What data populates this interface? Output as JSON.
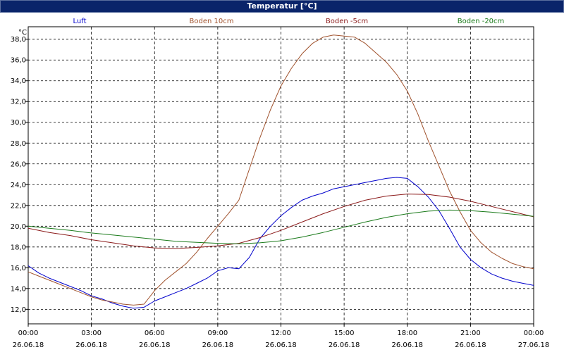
{
  "window": {
    "title": "Temperatur [°C]"
  },
  "chart_data": {
    "type": "line",
    "title": "Temperatur [°C]",
    "ylabel": "°C",
    "xlabel": "",
    "ylim": [
      10.6,
      39.2
    ],
    "xlim": [
      0,
      24
    ],
    "y_ticks": [
      12.0,
      14.0,
      16.0,
      18.0,
      20.0,
      22.0,
      24.0,
      26.0,
      28.0,
      30.0,
      32.0,
      34.0,
      36.0,
      38.0
    ],
    "x_ticks": [
      {
        "x": 0,
        "time": "00:00",
        "date": "26.06.18"
      },
      {
        "x": 3,
        "time": "03:00",
        "date": "26.06.18"
      },
      {
        "x": 6,
        "time": "06:00",
        "date": "26.06.18"
      },
      {
        "x": 9,
        "time": "09:00",
        "date": "26.06.18"
      },
      {
        "x": 12,
        "time": "12:00",
        "date": "26.06.18"
      },
      {
        "x": 15,
        "time": "15:00",
        "date": "26.06.18"
      },
      {
        "x": 18,
        "time": "18:00",
        "date": "26.06.18"
      },
      {
        "x": 21,
        "time": "21:00",
        "date": "26.06.18"
      },
      {
        "x": 24,
        "time": "00:00",
        "date": "27.06.18"
      }
    ],
    "grid": true,
    "legend_position": "top",
    "series": [
      {
        "name": "Luft",
        "color": "#0000cc",
        "x": [
          0,
          0.5,
          1,
          1.5,
          2,
          2.5,
          3,
          3.5,
          4,
          4.5,
          5,
          5.5,
          6,
          6.5,
          7,
          7.5,
          8,
          8.5,
          9,
          9.5,
          10,
          10.5,
          11,
          11.5,
          12,
          12.5,
          13,
          13.5,
          14,
          14.5,
          15,
          15.5,
          16,
          16.5,
          17,
          17.5,
          18,
          18.5,
          19,
          19.5,
          20,
          20.5,
          21,
          21.5,
          22,
          22.5,
          23,
          23.5,
          24
        ],
        "y": [
          16.2,
          15.5,
          15.0,
          14.6,
          14.2,
          13.8,
          13.3,
          13.0,
          12.6,
          12.3,
          12.1,
          12.2,
          12.8,
          13.2,
          13.6,
          14.0,
          14.5,
          15.0,
          15.7,
          16.0,
          15.9,
          17.0,
          18.8,
          20.0,
          21.0,
          21.8,
          22.5,
          22.9,
          23.2,
          23.6,
          23.8,
          24.0,
          24.2,
          24.4,
          24.6,
          24.7,
          24.6,
          23.8,
          22.8,
          21.5,
          19.8,
          18.0,
          16.8,
          16.0,
          15.4,
          15.0,
          14.7,
          14.5,
          14.3
        ]
      },
      {
        "name": "Boden 10cm",
        "color": "#a0522d",
        "x": [
          0,
          0.5,
          1,
          1.5,
          2,
          2.5,
          3,
          3.5,
          4,
          4.5,
          5,
          5.5,
          6,
          6.5,
          7,
          7.5,
          8,
          8.5,
          9,
          9.5,
          10,
          10.5,
          11,
          11.5,
          12,
          12.5,
          13,
          13.5,
          14,
          14.5,
          15,
          15.5,
          16,
          16.5,
          17,
          17.5,
          18,
          18.5,
          19,
          19.5,
          20,
          20.5,
          21,
          21.5,
          22,
          22.5,
          23,
          23.5,
          24
        ],
        "y": [
          15.6,
          15.2,
          14.8,
          14.4,
          14.0,
          13.6,
          13.2,
          12.9,
          12.7,
          12.5,
          12.4,
          12.5,
          13.8,
          14.8,
          15.6,
          16.4,
          17.5,
          18.8,
          20.0,
          21.2,
          22.5,
          25.5,
          28.5,
          31.2,
          33.5,
          35.2,
          36.6,
          37.6,
          38.2,
          38.4,
          38.3,
          38.2,
          37.6,
          36.7,
          35.8,
          34.6,
          33.0,
          30.8,
          28.2,
          25.8,
          23.4,
          21.4,
          19.6,
          18.4,
          17.5,
          16.9,
          16.4,
          16.1,
          15.9
        ]
      },
      {
        "name": "Boden -5cm",
        "color": "#8b1a1a",
        "x": [
          0,
          1,
          2,
          3,
          4,
          5,
          6,
          7,
          8,
          9,
          10,
          11,
          12,
          13,
          14,
          15,
          16,
          17,
          18,
          19,
          20,
          21,
          22,
          23,
          24
        ],
        "y": [
          19.8,
          19.4,
          19.1,
          18.7,
          18.4,
          18.1,
          17.9,
          17.85,
          17.95,
          18.1,
          18.35,
          18.9,
          19.6,
          20.4,
          21.2,
          21.9,
          22.5,
          22.9,
          23.1,
          23.05,
          22.8,
          22.4,
          21.9,
          21.4,
          20.9
        ]
      },
      {
        "name": "Boden -20cm",
        "color": "#1a7a1a",
        "x": [
          0,
          1,
          2,
          3,
          4,
          5,
          6,
          7,
          8,
          9,
          10,
          11,
          12,
          13,
          14,
          15,
          16,
          17,
          18,
          19,
          20,
          21,
          22,
          23,
          24
        ],
        "y": [
          20.0,
          19.8,
          19.6,
          19.35,
          19.15,
          18.95,
          18.75,
          18.55,
          18.45,
          18.35,
          18.3,
          18.4,
          18.6,
          18.95,
          19.4,
          19.9,
          20.4,
          20.85,
          21.2,
          21.45,
          21.55,
          21.5,
          21.35,
          21.15,
          20.95
        ]
      }
    ]
  }
}
